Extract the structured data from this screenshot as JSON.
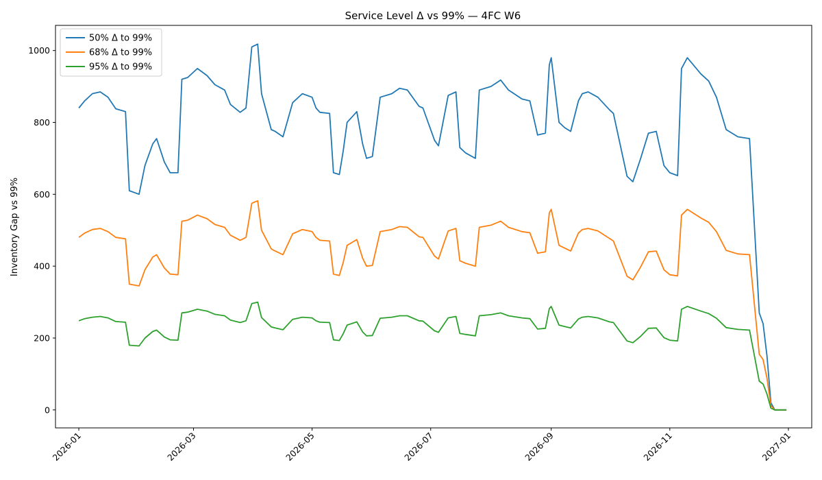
{
  "chart_data": {
    "type": "line",
    "title": "Service Level Δ vs 99% — 4FC W6",
    "xlabel": "",
    "ylabel": "Inventory Gap vs 99%",
    "x_ticks": [
      "2026-01",
      "2026-03",
      "2026-05",
      "2026-07",
      "2026-09",
      "2026-11",
      "2027-01"
    ],
    "y_ticks": [
      0,
      200,
      400,
      600,
      800,
      1000
    ],
    "xlim": [
      "2025-12-20",
      "2027-01-13"
    ],
    "ylim": [
      -50,
      1070
    ],
    "grid": false,
    "legend_position": "top-left",
    "x": [
      "2026-01-01",
      "2026-01-04",
      "2026-01-08",
      "2026-01-12",
      "2026-01-16",
      "2026-01-20",
      "2026-01-25",
      "2026-01-27",
      "2026-02-01",
      "2026-02-04",
      "2026-02-08",
      "2026-02-10",
      "2026-02-14",
      "2026-02-17",
      "2026-02-21",
      "2026-02-23",
      "2026-02-26",
      "2026-03-03",
      "2026-03-08",
      "2026-03-12",
      "2026-03-17",
      "2026-03-20",
      "2026-03-25",
      "2026-03-28",
      "2026-03-31",
      "2026-04-03",
      "2026-04-05",
      "2026-04-10",
      "2026-04-12",
      "2026-04-16",
      "2026-04-21",
      "2026-04-26",
      "2026-05-01",
      "2026-05-03",
      "2026-05-05",
      "2026-05-10",
      "2026-05-12",
      "2026-05-15",
      "2026-05-17",
      "2026-05-19",
      "2026-05-24",
      "2026-05-27",
      "2026-05-29",
      "2026-06-01",
      "2026-06-05",
      "2026-06-11",
      "2026-06-15",
      "2026-06-19",
      "2026-06-25",
      "2026-06-27",
      "2026-07-03",
      "2026-07-05",
      "2026-07-10",
      "2026-07-14",
      "2026-07-16",
      "2026-07-19",
      "2026-07-24",
      "2026-07-26",
      "2026-08-01",
      "2026-08-06",
      "2026-08-10",
      "2026-08-17",
      "2026-08-21",
      "2026-08-25",
      "2026-08-29",
      "2026-08-31",
      "2026-09-01",
      "2026-09-05",
      "2026-09-08",
      "2026-09-11",
      "2026-09-15",
      "2026-09-17",
      "2026-09-20",
      "2026-09-25",
      "2026-10-01",
      "2026-10-03",
      "2026-10-10",
      "2026-10-13",
      "2026-10-17",
      "2026-10-21",
      "2026-10-25",
      "2026-10-29",
      "2026-11-01",
      "2026-11-05",
      "2026-11-07",
      "2026-11-10",
      "2026-11-17",
      "2026-11-21",
      "2026-11-25",
      "2026-11-30",
      "2026-12-06",
      "2026-12-12",
      "2026-12-17",
      "2026-12-19",
      "2026-12-21",
      "2026-12-23",
      "2026-12-25",
      "2026-12-27",
      "2026-12-29",
      "2026-12-31"
    ],
    "series": [
      {
        "name": "50% Δ to 99%",
        "color": "#1f77b4",
        "values": [
          840,
          860,
          880,
          885,
          870,
          838,
          830,
          610,
          600,
          680,
          740,
          755,
          690,
          660,
          660,
          920,
          925,
          950,
          930,
          905,
          890,
          850,
          828,
          840,
          1010,
          1018,
          880,
          780,
          775,
          760,
          855,
          880,
          870,
          840,
          828,
          825,
          660,
          655,
          720,
          800,
          830,
          740,
          700,
          705,
          870,
          880,
          895,
          890,
          845,
          840,
          750,
          735,
          875,
          885,
          730,
          715,
          700,
          890,
          900,
          918,
          890,
          865,
          860,
          765,
          770,
          960,
          980,
          800,
          785,
          775,
          860,
          880,
          885,
          870,
          835,
          825,
          650,
          635,
          700,
          770,
          775,
          680,
          660,
          652,
          950,
          980,
          935,
          915,
          870,
          780,
          760,
          755,
          270,
          240,
          150,
          20,
          0,
          0,
          0,
          0
        ]
      },
      {
        "name": "68% Δ to 99%",
        "color": "#ff7f0e",
        "values": [
          480,
          492,
          502,
          505,
          496,
          480,
          476,
          350,
          345,
          390,
          425,
          432,
          395,
          378,
          376,
          525,
          528,
          542,
          532,
          516,
          508,
          486,
          472,
          480,
          575,
          582,
          500,
          448,
          442,
          432,
          490,
          502,
          496,
          480,
          472,
          470,
          378,
          374,
          410,
          458,
          474,
          422,
          400,
          402,
          496,
          502,
          510,
          508,
          482,
          480,
          428,
          420,
          498,
          505,
          415,
          408,
          400,
          508,
          514,
          525,
          508,
          496,
          493,
          436,
          440,
          548,
          558,
          458,
          450,
          442,
          492,
          502,
          505,
          498,
          477,
          470,
          372,
          362,
          398,
          440,
          442,
          390,
          376,
          373,
          542,
          558,
          534,
          522,
          496,
          444,
          434,
          432,
          155,
          140,
          88,
          12,
          0,
          0,
          0,
          0
        ]
      },
      {
        "name": "95% Δ to 99%",
        "color": "#2ca02c",
        "values": [
          248,
          254,
          258,
          260,
          256,
          246,
          244,
          180,
          178,
          200,
          218,
          222,
          203,
          195,
          194,
          270,
          272,
          280,
          275,
          266,
          262,
          250,
          243,
          248,
          296,
          300,
          257,
          231,
          228,
          223,
          252,
          258,
          256,
          248,
          244,
          243,
          195,
          193,
          212,
          236,
          245,
          217,
          206,
          207,
          255,
          258,
          262,
          262,
          248,
          247,
          220,
          216,
          256,
          260,
          213,
          210,
          206,
          262,
          265,
          270,
          262,
          256,
          254,
          225,
          227,
          282,
          288,
          236,
          232,
          228,
          253,
          258,
          260,
          256,
          245,
          243,
          192,
          187,
          205,
          227,
          228,
          201,
          194,
          192,
          280,
          288,
          275,
          268,
          255,
          229,
          224,
          222,
          80,
          72,
          44,
          5,
          0,
          0,
          0,
          0
        ]
      }
    ]
  }
}
